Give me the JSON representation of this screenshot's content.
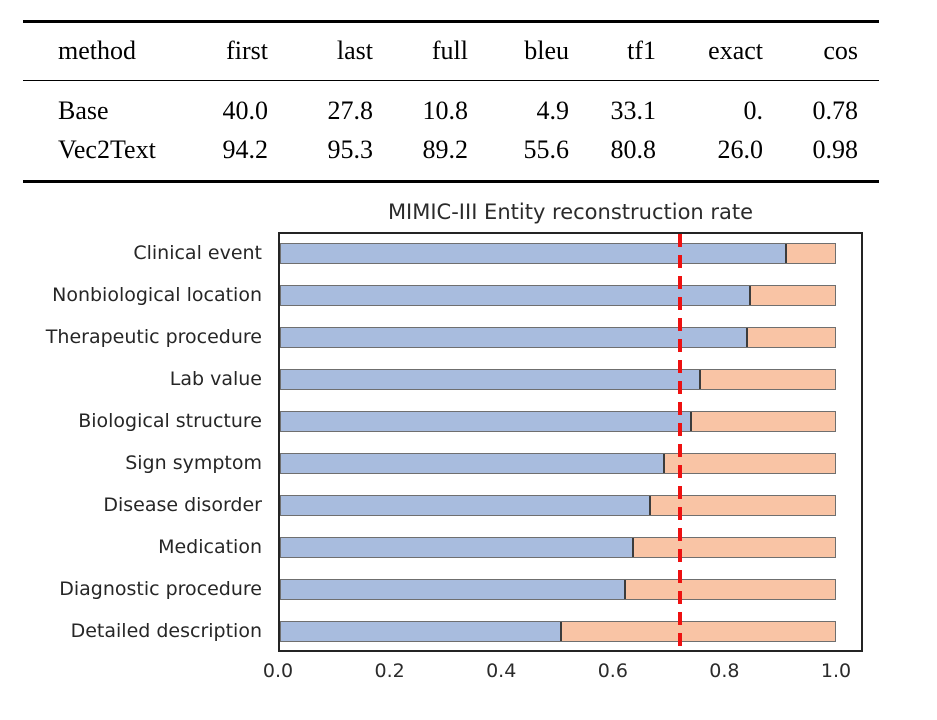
{
  "table": {
    "headers": [
      "method",
      "first",
      "last",
      "full",
      "bleu",
      "tf1",
      "exact",
      "cos"
    ],
    "rows": [
      {
        "method": "Base",
        "values": [
          "40.0",
          "27.8",
          "10.8",
          "4.9",
          "33.1",
          "0.",
          "0.78"
        ]
      },
      {
        "method": "Vec2Text",
        "values": [
          "94.2",
          "95.3",
          "89.2",
          "55.6",
          "80.8",
          "26.0",
          "0.98"
        ]
      }
    ]
  },
  "chart_data": {
    "type": "bar",
    "orientation": "horizontal",
    "stacked": true,
    "title": "MIMIC-III Entity reconstruction rate",
    "categories": [
      "Clinical event",
      "Nonbiological location",
      "Therapeutic procedure",
      "Lab value",
      "Biological structure",
      "Sign symptom",
      "Disease disorder",
      "Medication",
      "Diagnostic procedure",
      "Detailed description"
    ],
    "series": [
      {
        "name": "blue",
        "color": "#a8bcde",
        "values": [
          0.91,
          0.845,
          0.84,
          0.755,
          0.74,
          0.69,
          0.665,
          0.635,
          0.62,
          0.505
        ]
      },
      {
        "name": "salmon",
        "color": "#f9c4a5",
        "values": [
          0.09,
          0.155,
          0.16,
          0.245,
          0.26,
          0.31,
          0.335,
          0.365,
          0.38,
          0.495
        ]
      }
    ],
    "bar_total": 1.0,
    "xlim": [
      0.0,
      1.048
    ],
    "xticks": [
      0.0,
      0.2,
      0.4,
      0.6,
      0.8,
      1.0
    ],
    "xtick_labels": [
      "0.0",
      "0.2",
      "0.4",
      "0.6",
      "0.8",
      "1.0"
    ],
    "reference_line": {
      "x": 0.72,
      "style": "dashed",
      "color": "#ee1111"
    },
    "grid": false,
    "legend": "none"
  }
}
